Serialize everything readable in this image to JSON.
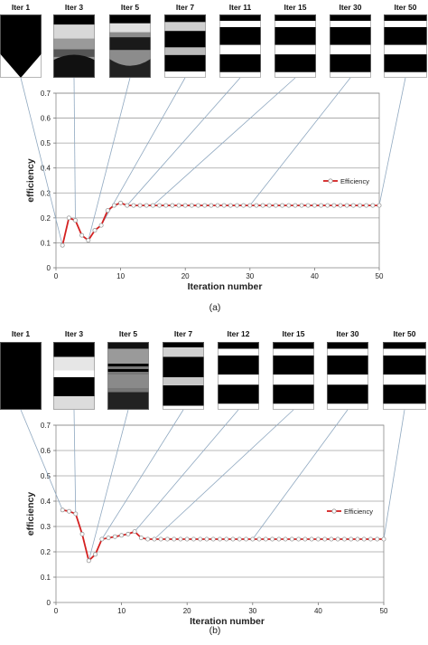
{
  "chart_data": [
    {
      "type": "line",
      "caption": "(a)",
      "xlabel": "Iteration number",
      "ylabel": "efficiency",
      "xlim": [
        0,
        50
      ],
      "ylim": [
        0,
        0.7
      ],
      "xticks": [
        "0",
        "10",
        "20",
        "30",
        "40",
        "50"
      ],
      "yticks": [
        "0",
        "0.1",
        "0.2",
        "0.3",
        "0.4",
        "0.5",
        "0.6",
        "0.7"
      ],
      "grid": "horizontal",
      "legend_position": "right",
      "series_color": "#d42020",
      "series": [
        {
          "name": "Efficiency",
          "x": [
            1,
            2,
            3,
            4,
            5,
            6,
            7,
            8,
            9,
            10,
            11,
            12,
            13,
            14,
            15,
            16,
            17,
            18,
            19,
            20,
            21,
            22,
            23,
            24,
            25,
            26,
            27,
            28,
            29,
            30,
            31,
            32,
            33,
            34,
            35,
            36,
            37,
            38,
            39,
            40,
            41,
            42,
            43,
            44,
            45,
            46,
            47,
            48,
            49,
            50
          ],
          "values": [
            0.09,
            0.2,
            0.19,
            0.13,
            0.11,
            0.15,
            0.17,
            0.23,
            0.25,
            0.26,
            0.25,
            0.25,
            0.25,
            0.25,
            0.25,
            0.25,
            0.25,
            0.25,
            0.25,
            0.25,
            0.25,
            0.25,
            0.25,
            0.25,
            0.25,
            0.25,
            0.25,
            0.25,
            0.25,
            0.25,
            0.25,
            0.25,
            0.25,
            0.25,
            0.25,
            0.25,
            0.25,
            0.25,
            0.25,
            0.25,
            0.25,
            0.25,
            0.25,
            0.25,
            0.25,
            0.25,
            0.25,
            0.25,
            0.25,
            0.25
          ]
        }
      ],
      "thumbnails": [
        {
          "label": "Iter  1",
          "iteration": 1
        },
        {
          "label": "Iter  3",
          "iteration": 3
        },
        {
          "label": "Iter  5",
          "iteration": 5
        },
        {
          "label": "Iter  7",
          "iteration": 7
        },
        {
          "label": "Iter  11",
          "iteration": 11
        },
        {
          "label": "Iter  15",
          "iteration": 15
        },
        {
          "label": "Iter  30",
          "iteration": 30
        },
        {
          "label": "Iter  50",
          "iteration": 50
        }
      ]
    },
    {
      "type": "line",
      "caption": "(b)",
      "xlabel": "Iteration number",
      "ylabel": "efficiency",
      "xlim": [
        0,
        50
      ],
      "ylim": [
        0,
        0.7
      ],
      "xticks": [
        "0",
        "10",
        "20",
        "30",
        "40",
        "50"
      ],
      "yticks": [
        "0",
        "0.1",
        "0.2",
        "0.3",
        "0.4",
        "0.5",
        "0.6",
        "0.7"
      ],
      "grid": "horizontal",
      "legend_position": "right",
      "series_color": "#d42020",
      "series": [
        {
          "name": "Efficiency",
          "x": [
            1,
            2,
            3,
            4,
            5,
            6,
            7,
            8,
            9,
            10,
            11,
            12,
            13,
            14,
            15,
            16,
            17,
            18,
            19,
            20,
            21,
            22,
            23,
            24,
            25,
            26,
            27,
            28,
            29,
            30,
            31,
            32,
            33,
            34,
            35,
            36,
            37,
            38,
            39,
            40,
            41,
            42,
            43,
            44,
            45,
            46,
            47,
            48,
            49,
            50
          ],
          "values": [
            0.365,
            0.36,
            0.35,
            0.27,
            0.165,
            0.19,
            0.25,
            0.255,
            0.26,
            0.265,
            0.27,
            0.28,
            0.255,
            0.25,
            0.25,
            0.25,
            0.25,
            0.25,
            0.25,
            0.25,
            0.25,
            0.25,
            0.25,
            0.25,
            0.25,
            0.25,
            0.25,
            0.25,
            0.25,
            0.25,
            0.25,
            0.25,
            0.25,
            0.25,
            0.25,
            0.25,
            0.25,
            0.25,
            0.25,
            0.25,
            0.25,
            0.25,
            0.25,
            0.25,
            0.25,
            0.25,
            0.25,
            0.25,
            0.25,
            0.25
          ]
        }
      ],
      "thumbnails": [
        {
          "label": "Iter  1",
          "iteration": 1
        },
        {
          "label": "Iter  3",
          "iteration": 3
        },
        {
          "label": "Iter  5",
          "iteration": 5
        },
        {
          "label": "Iter  7",
          "iteration": 7
        },
        {
          "label": "Iter  12",
          "iteration": 12
        },
        {
          "label": "Iter  15",
          "iteration": 15
        },
        {
          "label": "Iter  30",
          "iteration": 30
        },
        {
          "label": "Iter  50",
          "iteration": 50
        }
      ]
    }
  ]
}
